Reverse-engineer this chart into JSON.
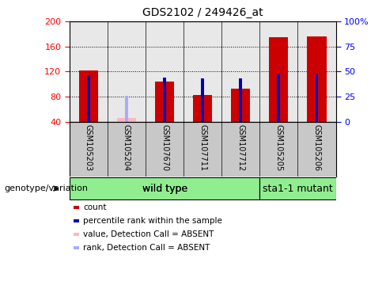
{
  "title": "GDS2102 / 249426_at",
  "samples": [
    "GSM105203",
    "GSM105204",
    "GSM107670",
    "GSM107711",
    "GSM107712",
    "GSM105205",
    "GSM105206"
  ],
  "count_values": [
    122,
    0,
    104,
    83,
    92,
    175,
    176
  ],
  "count_absent": [
    0,
    46,
    0,
    0,
    0,
    0,
    0
  ],
  "percentile_values": [
    46,
    0,
    44,
    43,
    43,
    48,
    48
  ],
  "percentile_absent": [
    0,
    26,
    0,
    0,
    0,
    0,
    0
  ],
  "is_absent": [
    false,
    true,
    false,
    false,
    false,
    false,
    false
  ],
  "ylim_left": [
    40,
    200
  ],
  "ylim_right": [
    0,
    100
  ],
  "yticks_left": [
    40,
    80,
    120,
    160,
    200
  ],
  "yticks_right": [
    0,
    25,
    50,
    75,
    100
  ],
  "ytick_labels_right": [
    "0",
    "25",
    "50",
    "75",
    "100%"
  ],
  "count_color": "#CC0000",
  "count_absent_color": "#FFB6C1",
  "percentile_color": "#0000BB",
  "percentile_absent_color": "#AAAAFF",
  "wt_count": 5,
  "wild_type_label": "wild type",
  "mutant_label": "sta1-1 mutant",
  "genotype_label": "genotype/variation",
  "legend_items": [
    {
      "label": "count",
      "color": "#CC0000"
    },
    {
      "label": "percentile rank within the sample",
      "color": "#0000BB"
    },
    {
      "label": "value, Detection Call = ABSENT",
      "color": "#FFB6C1"
    },
    {
      "label": "rank, Detection Call = ABSENT",
      "color": "#AAAAFF"
    }
  ],
  "background_color": "#FFFFFF",
  "bar_area_bg": "#E8E8E8",
  "label_area_bg": "#C8C8C8",
  "green_color": "#90EE90"
}
